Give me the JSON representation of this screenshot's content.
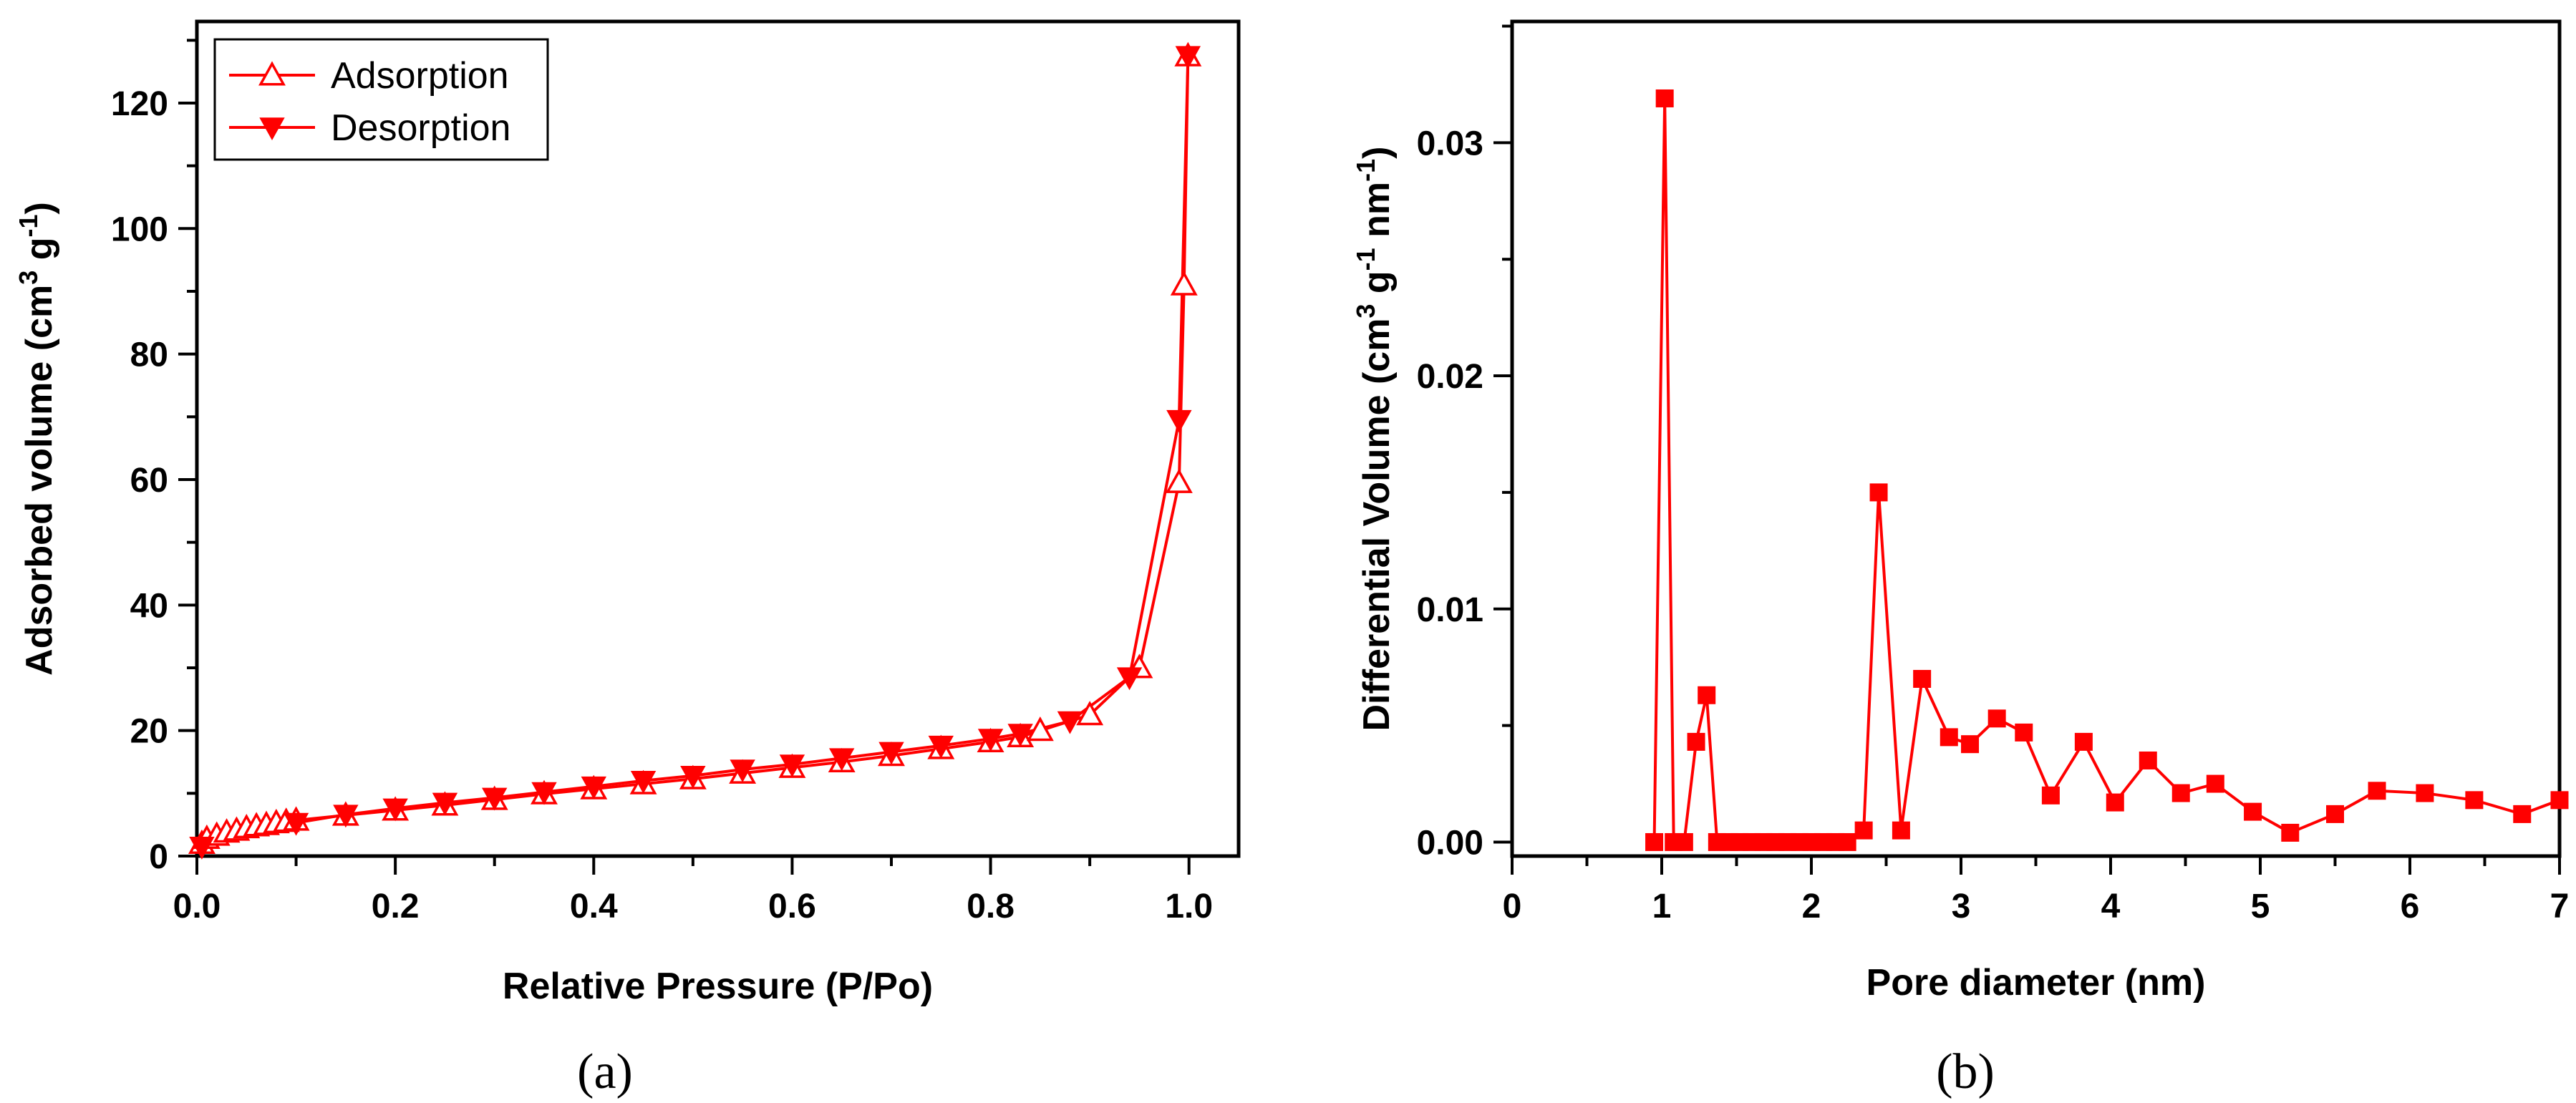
{
  "chart_data": [
    {
      "id": "a",
      "type": "line",
      "caption": "(a)",
      "xlabel": "Relative Pressure (P/Po)",
      "ylabel": "Adsorbed volume (cm³ g⁻¹)",
      "ylabel_parts": {
        "base": "Adsorbed volume (cm",
        "sup1": "3",
        "mid": " g",
        "sup2": "-1",
        "end": ")"
      },
      "xlim": [
        0.0,
        1.05
      ],
      "ylim": [
        0,
        133
      ],
      "xticks": [
        0.0,
        0.2,
        0.4,
        0.6,
        0.8,
        1.0
      ],
      "xtick_labels": [
        "0.0",
        "0.2",
        "0.4",
        "0.6",
        "0.8",
        "1.0"
      ],
      "yticks": [
        0,
        20,
        40,
        60,
        80,
        100,
        120
      ],
      "ytick_labels": [
        "0",
        "20",
        "40",
        "60",
        "80",
        "100",
        "120"
      ],
      "legend_position": "top-left",
      "series": [
        {
          "name": "Adsorption",
          "marker": "triangle-up-open",
          "color": "#ff0000",
          "x": [
            0.005,
            0.01,
            0.02,
            0.03,
            0.04,
            0.05,
            0.06,
            0.07,
            0.08,
            0.09,
            0.1,
            0.15,
            0.2,
            0.25,
            0.3,
            0.35,
            0.4,
            0.45,
            0.5,
            0.55,
            0.6,
            0.65,
            0.7,
            0.75,
            0.8,
            0.83,
            0.85,
            0.9,
            0.95,
            0.99,
            0.995,
            0.999
          ],
          "y": [
            2.0,
            2.8,
            3.3,
            3.8,
            4.1,
            4.5,
            4.8,
            5.0,
            5.3,
            5.5,
            5.7,
            6.5,
            7.3,
            8.1,
            9.0,
            9.9,
            10.7,
            11.5,
            12.3,
            13.2,
            14.1,
            15.0,
            16.0,
            17.1,
            18.2,
            19.0,
            20.0,
            22.5,
            30.0,
            59.5,
            91.0,
            127.5
          ]
        },
        {
          "name": "Desorption",
          "marker": "triangle-down-filled",
          "color": "#ff0000",
          "x": [
            0.999,
            0.99,
            0.94,
            0.88,
            0.83,
            0.8,
            0.75,
            0.7,
            0.65,
            0.6,
            0.55,
            0.5,
            0.45,
            0.4,
            0.35,
            0.3,
            0.25,
            0.2,
            0.15,
            0.1,
            0.005
          ],
          "y": [
            127.5,
            69.5,
            28.5,
            21.5,
            19.5,
            18.7,
            17.6,
            16.6,
            15.6,
            14.6,
            13.8,
            12.8,
            12.0,
            11.1,
            10.2,
            9.3,
            8.5,
            7.6,
            6.6,
            5.3,
            1.5
          ]
        }
      ]
    },
    {
      "id": "b",
      "type": "line",
      "caption": "(b)",
      "xlabel": "Pore diameter (nm)",
      "ylabel": "Differential Volume (cm³ g⁻¹ nm⁻¹)",
      "ylabel_parts": {
        "base": "Differential Volume (cm",
        "sup1": "3",
        "mid": " g",
        "sup2": "-1",
        "mid2": " nm",
        "sup3": "-1",
        "end": ")"
      },
      "xlim": [
        0,
        7
      ],
      "ylim": [
        -0.0006,
        0.0352
      ],
      "xticks": [
        0,
        1,
        2,
        3,
        4,
        5,
        6,
        7
      ],
      "xtick_labels": [
        "0",
        "1",
        "2",
        "3",
        "4",
        "5",
        "6",
        "7"
      ],
      "yticks": [
        0.0,
        0.01,
        0.02,
        0.03
      ],
      "ytick_labels": [
        "0.00",
        "0.01",
        "0.02",
        "0.03"
      ],
      "series": [
        {
          "name": "Differential Volume",
          "marker": "square-filled",
          "color": "#ff0000",
          "x": [
            0.95,
            1.02,
            1.08,
            1.15,
            1.23,
            1.3,
            1.37,
            1.45,
            1.52,
            1.6,
            1.68,
            1.76,
            1.84,
            1.92,
            2.0,
            2.08,
            2.16,
            2.24,
            2.35,
            2.45,
            2.6,
            2.74,
            2.92,
            3.06,
            3.24,
            3.42,
            3.6,
            3.82,
            4.03,
            4.25,
            4.47,
            4.7,
            4.95,
            5.2,
            5.5,
            5.78,
            6.1,
            6.43,
            6.75,
            7.0
          ],
          "y": [
            0.0,
            0.0319,
            0.0,
            0.0,
            0.0043,
            0.0063,
            0.0,
            0.0,
            0.0,
            0.0,
            0.0,
            0.0,
            0.0,
            0.0,
            0.0,
            0.0,
            0.0,
            0.0,
            0.0005,
            0.015,
            0.0005,
            0.007,
            0.0045,
            0.0042,
            0.0053,
            0.0047,
            0.002,
            0.0043,
            0.0017,
            0.0035,
            0.0021,
            0.0025,
            0.0013,
            0.0004,
            0.0012,
            0.0022,
            0.0021,
            0.0018,
            0.0012,
            0.0018
          ]
        }
      ]
    }
  ]
}
